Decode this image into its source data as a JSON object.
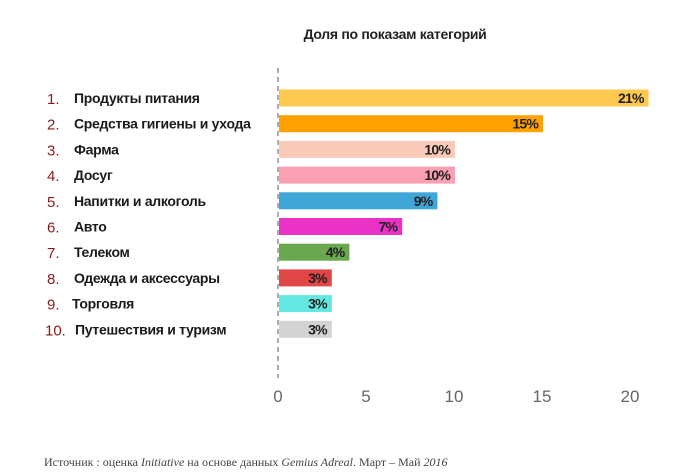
{
  "chart_data": {
    "type": "bar",
    "orientation": "horizontal",
    "title": "Доля по показам категорий",
    "ranks": [
      "1.",
      "2.",
      "3.",
      "4.",
      "5.",
      "6.",
      "7.",
      "8.",
      "9.",
      "10."
    ],
    "categories": [
      "Продукты питания",
      "Средства гигиены и ухода",
      "Фарма",
      "Досуг",
      "Напитки и алкоголь",
      "Авто",
      "Телеком",
      "Одежда и аксессуары",
      "Торговля",
      "Путешествия и туризм"
    ],
    "values": [
      21,
      15,
      10,
      10,
      9,
      7,
      4,
      3,
      3,
      3
    ],
    "data_labels": [
      "21%",
      "15%",
      "10%",
      "10%",
      "9%",
      "7%",
      "4%",
      "3%",
      "3%",
      "3%"
    ],
    "colors": [
      "#ffc94f",
      "#ffa100",
      "#f9cbb8",
      "#fb9fb3",
      "#3fa6d8",
      "#ea32c6",
      "#6aa84f",
      "#e04646",
      "#62e8e0",
      "#d3d3d3"
    ],
    "x_ticks": [
      0,
      5,
      10,
      15,
      20
    ],
    "x_tick_labels": [
      "0",
      "5",
      "10",
      "15",
      "20"
    ],
    "xlim": [
      0,
      21
    ],
    "xlabel": "",
    "ylabel": "",
    "grid": false,
    "legend": "none"
  },
  "source": {
    "prefix": "Источник : оценка ",
    "agency": "Initiative",
    "middle": " на основе данных ",
    "data_source": "Gemius Adreal",
    "period_prefix": ". Март – Май ",
    "year": "2016"
  }
}
